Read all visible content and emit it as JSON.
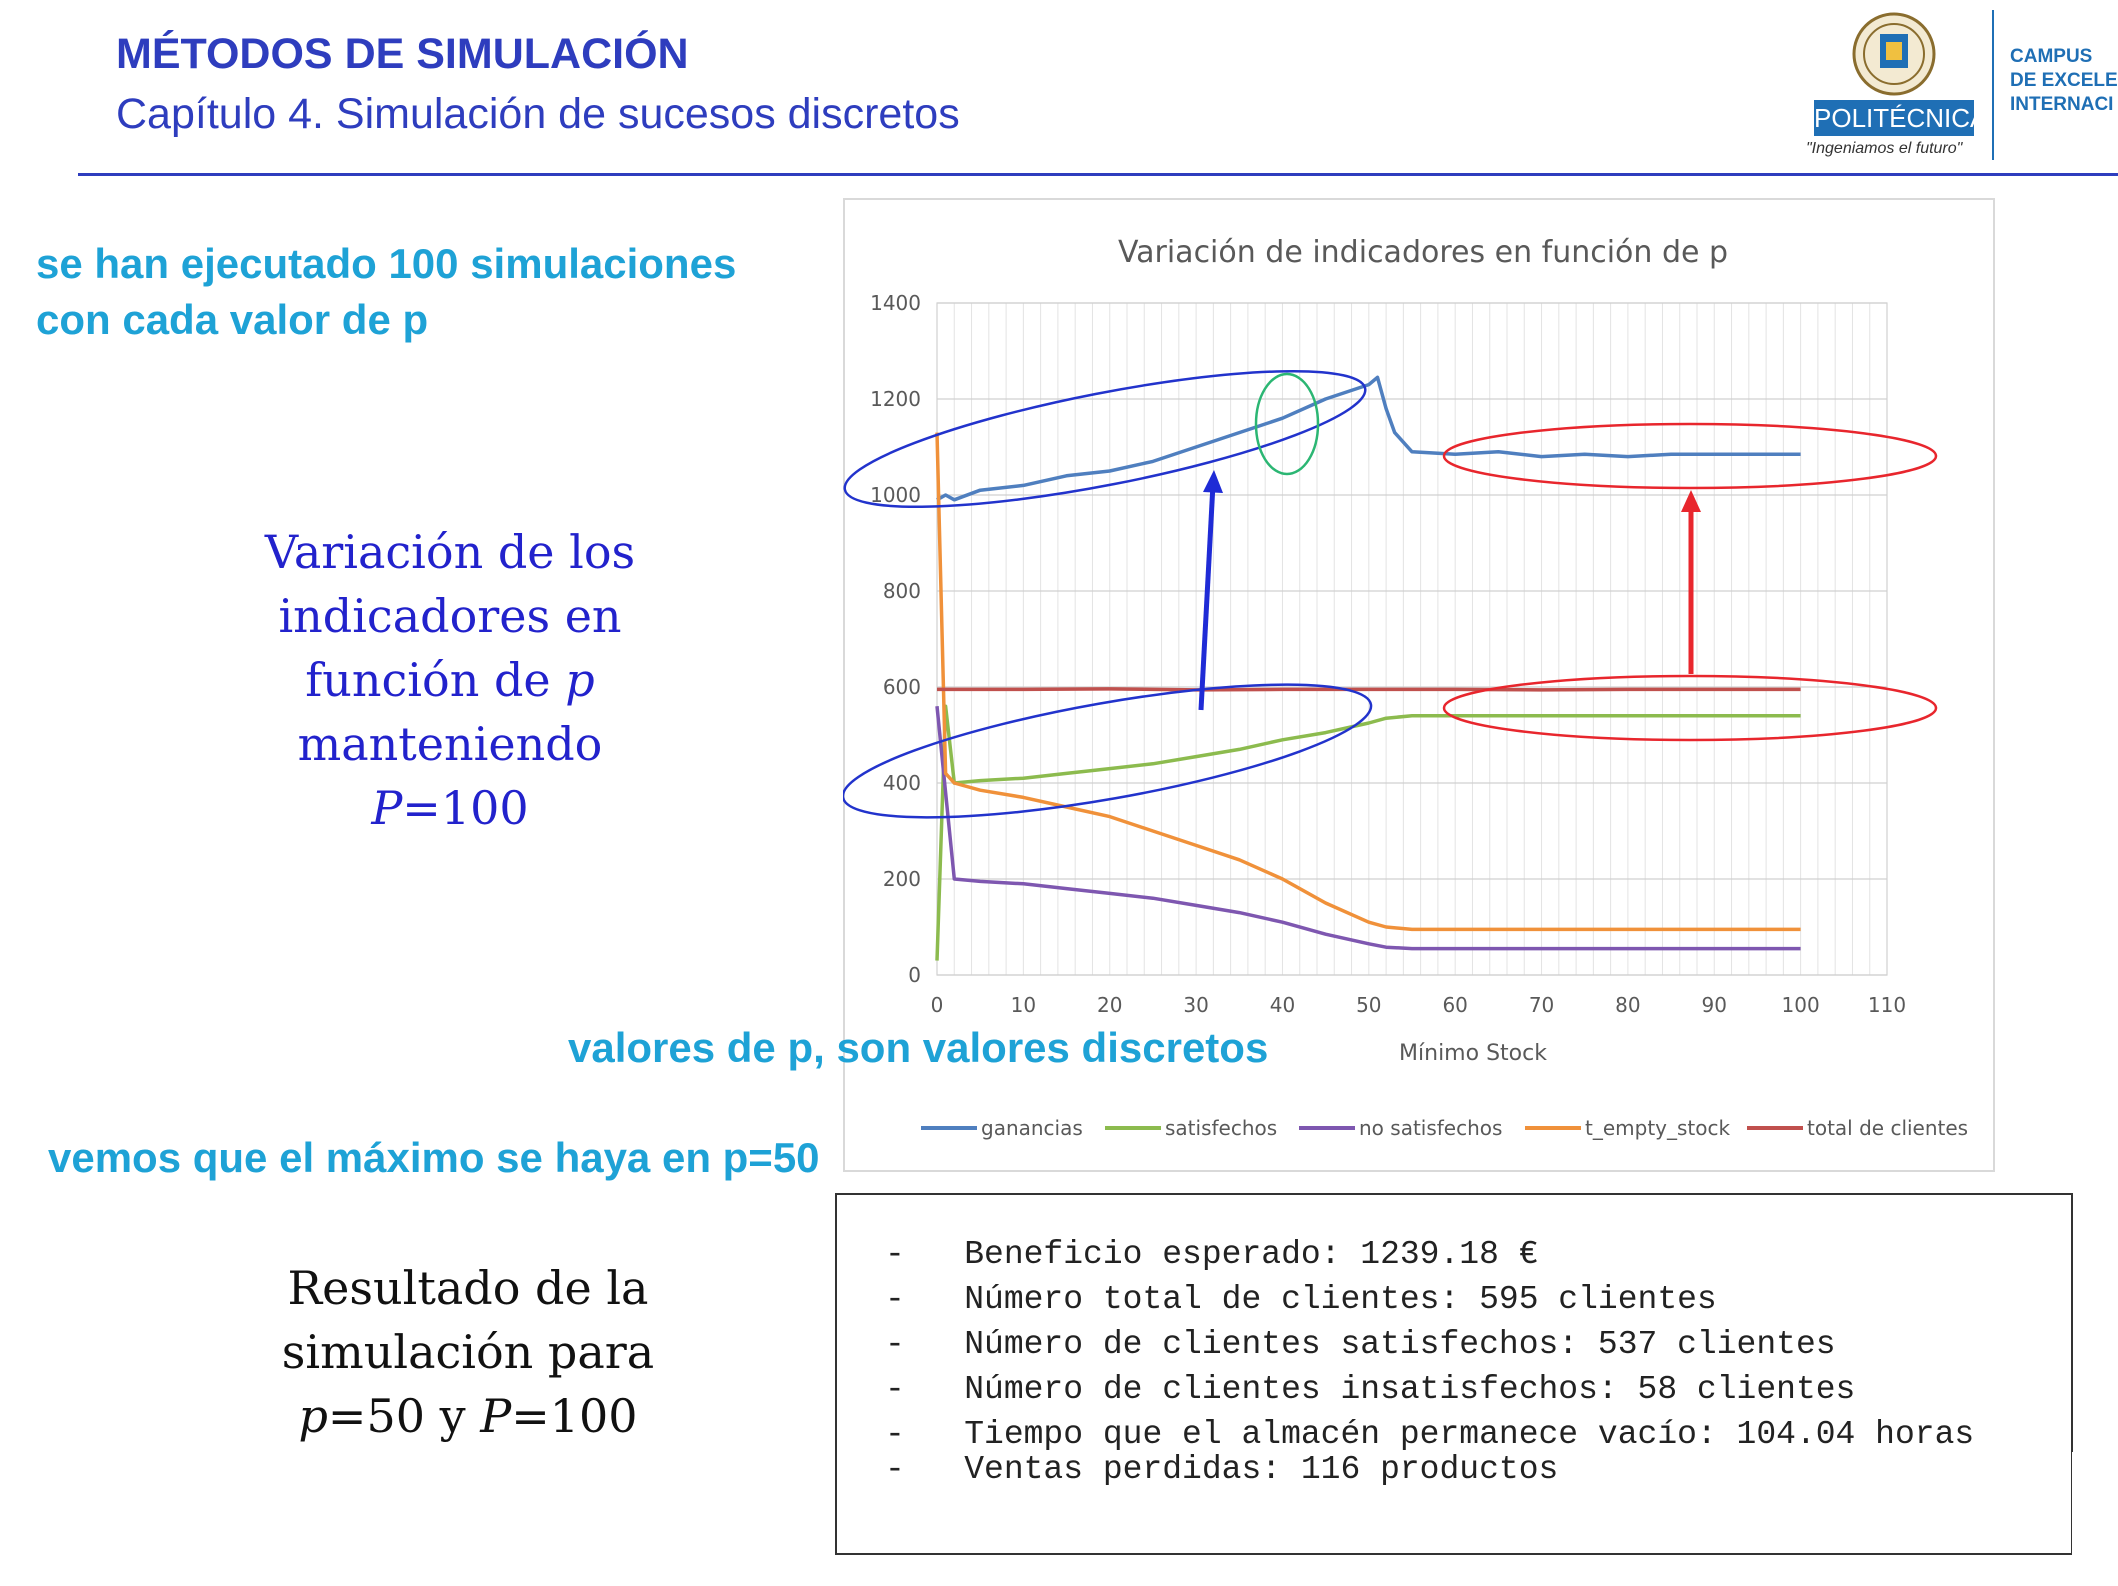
{
  "header": {
    "title": "MÉTODOS DE SIMULACIÓN",
    "subtitle": "Capítulo 4. Simulación de sucesos discretos",
    "logo_badge": "POLITÉCNICA",
    "logo_tagline": "\"Ingeniamos el futuro\"",
    "campus_lines": [
      "CAMPUS",
      "DE EXCELE",
      "INTERNACI"
    ]
  },
  "notes": {
    "runs_line1": "se han ejecutado 100 simulaciones",
    "runs_line2": "con cada valor de p",
    "discrete": "valores de p, son valores discretos",
    "maximum": "vemos que el máximo se haya en p=50"
  },
  "left_text": {
    "line1": "Variación de los",
    "line2": "indicadores en",
    "line3_prefix": "función de ",
    "line3_var": "p",
    "line4": "manteniendo",
    "line5_var": "P",
    "line5_rest": "=100"
  },
  "result_text": {
    "line1": "Resultado de la",
    "line2": "simulación para",
    "line3_var1": "p",
    "line3_mid": "=50 y ",
    "line3_var2": "P",
    "line3_rest": "=100"
  },
  "results": {
    "lines": [
      "-   Beneficio esperado: 1239.18 €",
      "-   Número total de clientes: 595 clientes",
      "-   Número de clientes satisfechos: 537 clientes",
      "-   Número de clientes insatisfechos: 58 clientes",
      "-   Tiempo que el almacén permanece vacío: 104.04 horas",
      "-   Ventas perdidas: 116 productos"
    ]
  },
  "chart_data": {
    "type": "line",
    "title": "Variación de indicadores en función de p",
    "xlabel": "Mínimo Stock",
    "ylabel": "",
    "xlim": [
      0,
      110
    ],
    "ylim": [
      0,
      1400
    ],
    "x_ticks": [
      0,
      10,
      20,
      30,
      40,
      50,
      60,
      70,
      80,
      90,
      100,
      110
    ],
    "y_ticks": [
      0,
      200,
      400,
      600,
      800,
      1000,
      1200,
      1400
    ],
    "grid": true,
    "legend_position": "bottom",
    "series": [
      {
        "name": "ganancias",
        "color": "#4f7fbf",
        "x": [
          0,
          1,
          2,
          5,
          10,
          15,
          20,
          25,
          30,
          35,
          40,
          45,
          50,
          51,
          52,
          53,
          55,
          60,
          65,
          70,
          75,
          80,
          85,
          90,
          95,
          100
        ],
        "y": [
          990,
          1000,
          990,
          1010,
          1020,
          1040,
          1050,
          1070,
          1100,
          1130,
          1160,
          1200,
          1230,
          1245,
          1180,
          1130,
          1090,
          1085,
          1090,
          1080,
          1085,
          1080,
          1085,
          1085,
          1085,
          1085
        ]
      },
      {
        "name": "satisfechos",
        "color": "#8cbb4e",
        "x": [
          0,
          1,
          2,
          5,
          10,
          15,
          20,
          25,
          30,
          35,
          40,
          45,
          50,
          52,
          55,
          60,
          65,
          70,
          75,
          80,
          85,
          90,
          95,
          100
        ],
        "y": [
          30,
          560,
          400,
          405,
          410,
          420,
          430,
          440,
          455,
          470,
          490,
          505,
          525,
          535,
          540,
          540,
          540,
          540,
          540,
          540,
          540,
          540,
          540,
          540
        ]
      },
      {
        "name": "no satisfechos",
        "color": "#7e57b0",
        "x": [
          0,
          1,
          2,
          5,
          10,
          15,
          20,
          25,
          30,
          35,
          40,
          45,
          50,
          52,
          55,
          60,
          65,
          70,
          75,
          80,
          85,
          90,
          95,
          100
        ],
        "y": [
          560,
          380,
          200,
          195,
          190,
          180,
          170,
          160,
          145,
          130,
          110,
          85,
          65,
          58,
          55,
          55,
          55,
          55,
          55,
          55,
          55,
          55,
          55,
          55
        ]
      },
      {
        "name": "t_empty_stock",
        "color": "#f0913a",
        "x": [
          0,
          1,
          2,
          5,
          10,
          15,
          20,
          25,
          30,
          35,
          40,
          45,
          50,
          52,
          55,
          60,
          65,
          70,
          75,
          80,
          85,
          90,
          95,
          100
        ],
        "y": [
          1130,
          420,
          400,
          385,
          370,
          350,
          330,
          300,
          270,
          240,
          200,
          150,
          110,
          100,
          95,
          95,
          95,
          95,
          95,
          95,
          95,
          95,
          95,
          95
        ]
      },
      {
        "name": "total de clientes",
        "color": "#c0504d",
        "x": [
          0,
          1,
          10,
          20,
          30,
          40,
          50,
          60,
          70,
          80,
          90,
          100
        ],
        "y": [
          595,
          595,
          595,
          596,
          594,
          595,
          595,
          595,
          594,
          595,
          595,
          595
        ]
      }
    ]
  }
}
